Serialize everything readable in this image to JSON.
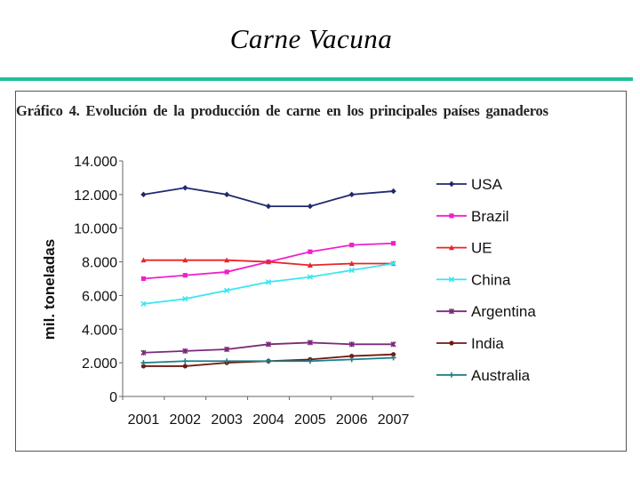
{
  "slide": {
    "title": "Carne Vacuna"
  },
  "chart_data": {
    "type": "line",
    "title": "Gráfico 4. Evolución de la producción de carne en los principales países ganaderos",
    "xlabel": "",
    "ylabel": "mil. toneladas",
    "categories": [
      "2001",
      "2002",
      "2003",
      "2004",
      "2005",
      "2006",
      "2007"
    ],
    "ylim": [
      0,
      14000
    ],
    "yticks": [
      "0",
      "2.000",
      "4.000",
      "6.000",
      "8.000",
      "10.000",
      "12.000",
      "14.000"
    ],
    "ytick_values": [
      0,
      2000,
      4000,
      6000,
      8000,
      10000,
      12000,
      14000
    ],
    "legend_position": "right",
    "grid": false,
    "series": [
      {
        "name": "USA",
        "color": "#1f2a6e",
        "marker": "diamond",
        "values": [
          12000,
          12400,
          12000,
          11300,
          11300,
          12000,
          12200
        ]
      },
      {
        "name": "Brazil",
        "color": "#f020c8",
        "marker": "square",
        "values": [
          7000,
          7200,
          7400,
          8000,
          8600,
          9000,
          9100
        ]
      },
      {
        "name": "UE",
        "color": "#e8262a",
        "marker": "triangle",
        "values": [
          8100,
          8100,
          8100,
          8000,
          7800,
          7900,
          7900
        ]
      },
      {
        "name": "China",
        "color": "#39e6ee",
        "marker": "x",
        "values": [
          5500,
          5800,
          6300,
          6800,
          7100,
          7500,
          7900
        ]
      },
      {
        "name": "Argentina",
        "color": "#7a2a7a",
        "marker": "star",
        "values": [
          2600,
          2700,
          2800,
          3100,
          3200,
          3100,
          3100
        ]
      },
      {
        "name": "India",
        "color": "#6e1a10",
        "marker": "circle",
        "values": [
          1800,
          1800,
          2000,
          2100,
          2200,
          2400,
          2500
        ]
      },
      {
        "name": "Australia",
        "color": "#1a7e88",
        "marker": "plus",
        "values": [
          2000,
          2100,
          2100,
          2100,
          2100,
          2200,
          2300
        ]
      }
    ]
  }
}
